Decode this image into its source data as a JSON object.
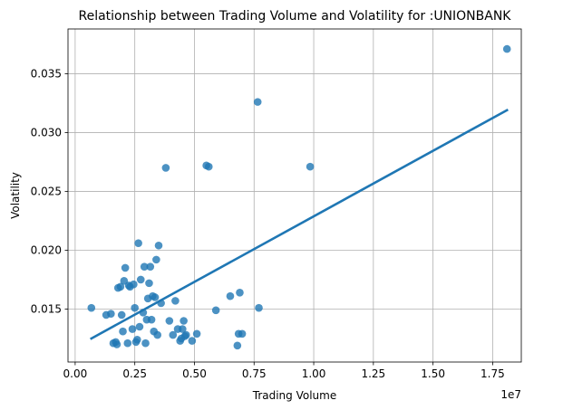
{
  "chart_data": {
    "type": "scatter",
    "title": "Relationship between Trading Volume and Volatility for :UNIONBANK",
    "xlabel": "Trading Volume",
    "ylabel": "Volatility",
    "x_offset_label": "1e7",
    "x_scale": 10000000,
    "xlim": [
      -0.03,
      1.87
    ],
    "ylim": [
      0.0105,
      0.0388
    ],
    "x_ticks": [
      0.0,
      0.25,
      0.5,
      0.75,
      1.0,
      1.25,
      1.5,
      1.75
    ],
    "x_tick_labels": [
      "0.00",
      "0.25",
      "0.50",
      "0.75",
      "1.00",
      "1.25",
      "1.50",
      "1.75"
    ],
    "y_ticks": [
      0.015,
      0.02,
      0.025,
      0.03,
      0.035
    ],
    "y_tick_labels": [
      "0.015",
      "0.020",
      "0.025",
      "0.030",
      "0.035"
    ],
    "grid": true,
    "color": "#1f77b4",
    "points": [
      [
        0.068,
        0.0151
      ],
      [
        0.13,
        0.0145
      ],
      [
        0.15,
        0.0146
      ],
      [
        0.16,
        0.0121
      ],
      [
        0.17,
        0.0122
      ],
      [
        0.175,
        0.012
      ],
      [
        0.18,
        0.0168
      ],
      [
        0.19,
        0.0169
      ],
      [
        0.195,
        0.0145
      ],
      [
        0.2,
        0.0131
      ],
      [
        0.205,
        0.0174
      ],
      [
        0.21,
        0.0185
      ],
      [
        0.22,
        0.0121
      ],
      [
        0.225,
        0.017
      ],
      [
        0.23,
        0.0169
      ],
      [
        0.24,
        0.0133
      ],
      [
        0.245,
        0.0171
      ],
      [
        0.25,
        0.0151
      ],
      [
        0.255,
        0.0122
      ],
      [
        0.26,
        0.0124
      ],
      [
        0.265,
        0.0206
      ],
      [
        0.27,
        0.0135
      ],
      [
        0.275,
        0.0175
      ],
      [
        0.285,
        0.0147
      ],
      [
        0.29,
        0.0186
      ],
      [
        0.295,
        0.0121
      ],
      [
        0.3,
        0.0141
      ],
      [
        0.305,
        0.0159
      ],
      [
        0.31,
        0.0172
      ],
      [
        0.315,
        0.0186
      ],
      [
        0.32,
        0.0141
      ],
      [
        0.325,
        0.0161
      ],
      [
        0.33,
        0.0131
      ],
      [
        0.335,
        0.016
      ],
      [
        0.34,
        0.0192
      ],
      [
        0.345,
        0.0128
      ],
      [
        0.35,
        0.0204
      ],
      [
        0.36,
        0.0155
      ],
      [
        0.38,
        0.027
      ],
      [
        0.395,
        0.014
      ],
      [
        0.41,
        0.0128
      ],
      [
        0.42,
        0.0157
      ],
      [
        0.43,
        0.0133
      ],
      [
        0.44,
        0.0123
      ],
      [
        0.445,
        0.0125
      ],
      [
        0.45,
        0.0133
      ],
      [
        0.455,
        0.014
      ],
      [
        0.46,
        0.0127
      ],
      [
        0.465,
        0.0128
      ],
      [
        0.49,
        0.0123
      ],
      [
        0.51,
        0.0129
      ],
      [
        0.55,
        0.0272
      ],
      [
        0.56,
        0.0271
      ],
      [
        0.59,
        0.0149
      ],
      [
        0.65,
        0.0161
      ],
      [
        0.68,
        0.0119
      ],
      [
        0.685,
        0.0129
      ],
      [
        0.69,
        0.0164
      ],
      [
        0.7,
        0.0129
      ],
      [
        0.765,
        0.0326
      ],
      [
        0.77,
        0.0151
      ],
      [
        0.985,
        0.0271
      ],
      [
        1.81,
        0.0371
      ]
    ],
    "regression_line": {
      "x": [
        0.068,
        1.81
      ],
      "y": [
        0.0125,
        0.0319
      ]
    }
  }
}
